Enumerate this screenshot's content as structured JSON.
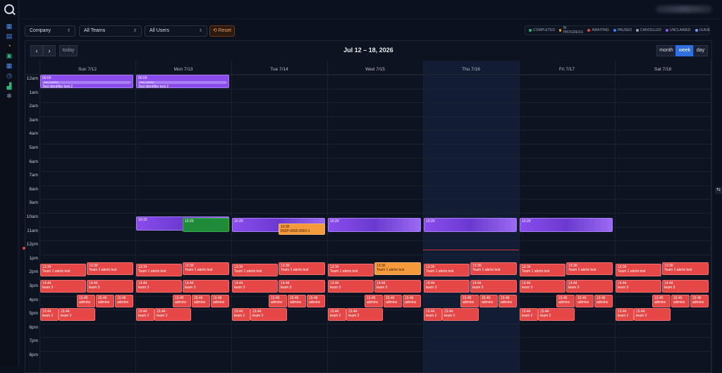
{
  "header": {
    "theme_icon": "moon-icon"
  },
  "sidebar": {
    "icons": [
      "calendar-icon",
      "grid-icon",
      "bell-icon",
      "clipboard-icon",
      "calendar-alt-icon",
      "clock-icon",
      "chart-icon",
      "gear-icon"
    ]
  },
  "filters": {
    "company": "Company",
    "teams": "All Teams",
    "users": "All Users",
    "reset": "Reset"
  },
  "legend": [
    {
      "label": "COMPLETED",
      "color": "#2fb47c"
    },
    {
      "label": "IN PROGRESS",
      "color": "#f59e0b"
    },
    {
      "label": "AWAITING",
      "color": "#ef4444"
    },
    {
      "label": "PAUSED",
      "color": "#3b82f6"
    },
    {
      "label": "CANCELLED",
      "color": "#94a3b8"
    },
    {
      "label": "UNCLAIMED",
      "color": "#8b5cf6"
    },
    {
      "label": "LEAVE",
      "color": "#60a5fa"
    }
  ],
  "toolbar": {
    "prev": "‹",
    "next": "›",
    "today": "today",
    "title": "Jul 12 – 18, 2026",
    "views": [
      "month",
      "week",
      "day"
    ],
    "active_view": "week"
  },
  "days": [
    "Sun 7/12",
    "Mon 7/13",
    "Tue 7/14",
    "Wed 7/15",
    "Thu 7/16",
    "Fri 7/17",
    "Sat 7/18"
  ],
  "hours": [
    "12am",
    "1am",
    "2am",
    "3am",
    "4am",
    "5am",
    "6am",
    "7am",
    "8am",
    "9am",
    "10am",
    "11am",
    "12pm",
    "1pm",
    "2pm",
    "3pm",
    "4pm",
    "5pm",
    "6pm",
    "7pm",
    "8pm"
  ],
  "events": {
    "unclaimed": {
      "time": "00:00",
      "tag": "UNCLAIMED",
      "title": "Test identifier test 2"
    },
    "ten": {
      "time": "10:10"
    },
    "ten_green": {
      "time": "10:20"
    },
    "ten_twenty": {
      "time": "10:20"
    },
    "orange_tue": {
      "time": "10:35",
      "title": "INSP-0002-0002-1"
    },
    "alerts": {
      "time": "13:34",
      "title": "Team 1 alerts test"
    },
    "alerts2": {
      "time": "13:30",
      "title": "Team 1 alerts test"
    },
    "team3": {
      "time": "14:44",
      "title": "team 3"
    },
    "admins": {
      "time": "15:45",
      "title": "admins"
    },
    "team2": {
      "time": "16:44",
      "title": "team 2"
    }
  }
}
